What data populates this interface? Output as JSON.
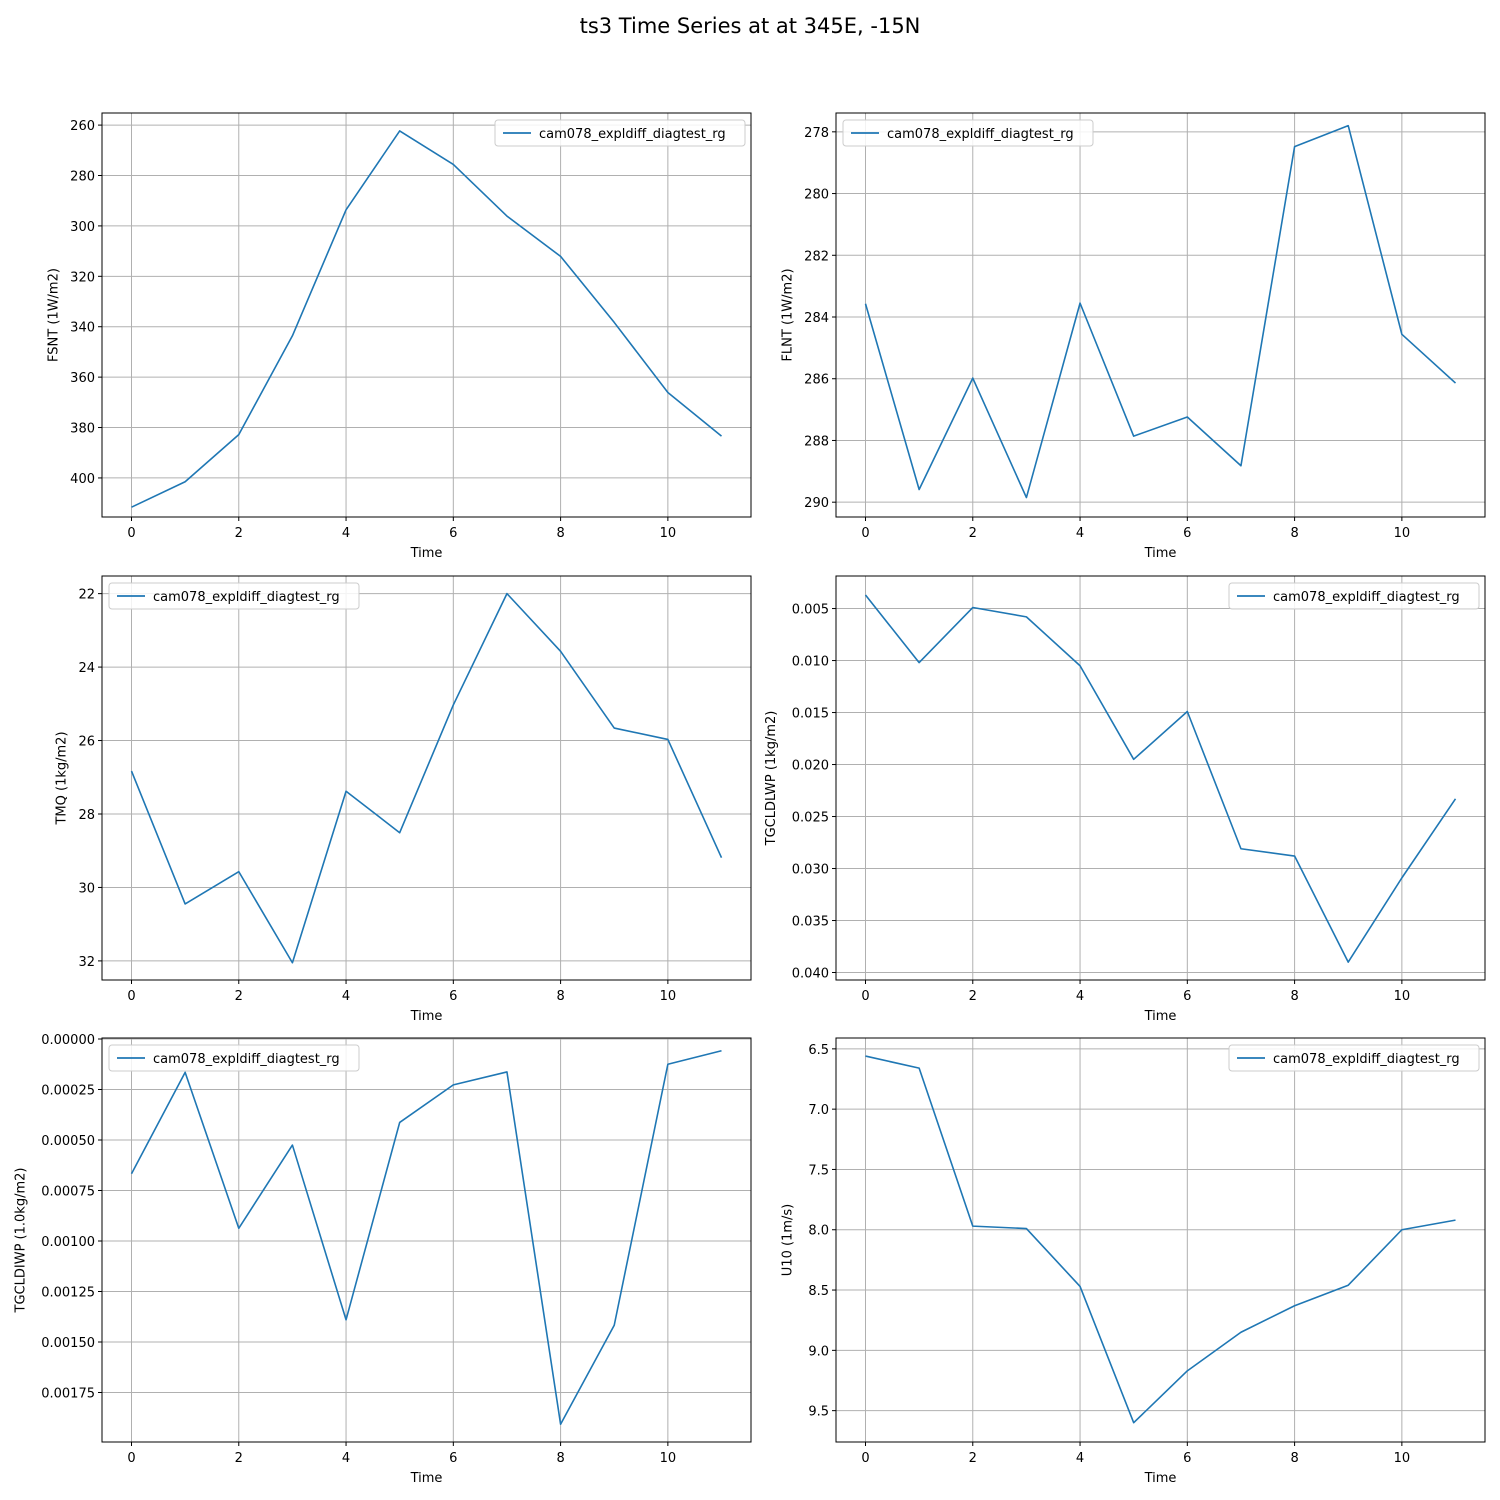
{
  "figure": {
    "title": "ts3 Time Series at at 345E, -15N"
  },
  "style": {
    "line_color": "#1f77b4",
    "grid_color": "#b0b0b0",
    "axis_color": "#000000"
  },
  "chart_data": [
    {
      "type": "line",
      "title": "",
      "xlabel": "Time",
      "ylabel": "FSNT (1W/m2)",
      "xlim": [
        -0.55,
        11.55
      ],
      "ylim": [
        415.5,
        255.2
      ],
      "y_inverted": true,
      "xticks": [
        0,
        2,
        4,
        6,
        8,
        10
      ],
      "xtick_labels": [
        "0",
        "2",
        "4",
        "6",
        "8",
        "10"
      ],
      "yticks": [
        260,
        280,
        300,
        320,
        340,
        360,
        380,
        400
      ],
      "ytick_labels": [
        "260",
        "280",
        "300",
        "320",
        "340",
        "360",
        "380",
        "400"
      ],
      "grid": true,
      "legend": "upper right",
      "x": [
        0,
        1,
        2,
        3,
        4,
        5,
        6,
        7,
        8,
        9,
        10,
        11
      ],
      "series": [
        {
          "name": "cam078_expldiff_diagtest_rg",
          "values": [
            411.6,
            401.5,
            382.8,
            343.6,
            293.6,
            262.3,
            275.6,
            296.1,
            312.1,
            338.3,
            366.1,
            383.4
          ]
        }
      ]
    },
    {
      "type": "line",
      "title": "",
      "xlabel": "Time",
      "ylabel": "FLNT (1W/m2)",
      "xlim": [
        -0.55,
        11.55
      ],
      "ylim": [
        290.48,
        277.39
      ],
      "y_inverted": true,
      "xticks": [
        0,
        2,
        4,
        6,
        8,
        10
      ],
      "xtick_labels": [
        "0",
        "2",
        "4",
        "6",
        "8",
        "10"
      ],
      "yticks": [
        278,
        280,
        282,
        284,
        286,
        288,
        290
      ],
      "ytick_labels": [
        "278",
        "280",
        "282",
        "284",
        "286",
        "288",
        "290"
      ],
      "grid": true,
      "legend": "upper left",
      "x": [
        0,
        1,
        2,
        3,
        4,
        5,
        6,
        7,
        8,
        9,
        10,
        11
      ],
      "series": [
        {
          "name": "cam078_expldiff_diagtest_rg",
          "values": [
            283.57,
            289.59,
            285.98,
            289.85,
            283.55,
            287.86,
            287.24,
            288.82,
            278.48,
            277.8,
            284.56,
            286.14
          ]
        }
      ]
    },
    {
      "type": "line",
      "title": "",
      "xlabel": "Time",
      "ylabel": "TMQ (1kg/m2)",
      "xlim": [
        -0.55,
        11.55
      ],
      "ylim": [
        32.52,
        21.52
      ],
      "y_inverted": true,
      "xticks": [
        0,
        2,
        4,
        6,
        8,
        10
      ],
      "xtick_labels": [
        "0",
        "2",
        "4",
        "6",
        "8",
        "10"
      ],
      "yticks": [
        22,
        24,
        26,
        28,
        30,
        32
      ],
      "ytick_labels": [
        "22",
        "24",
        "26",
        "28",
        "30",
        "32"
      ],
      "grid": true,
      "legend": "upper left",
      "x": [
        0,
        1,
        2,
        3,
        4,
        5,
        6,
        7,
        8,
        9,
        10,
        11
      ],
      "series": [
        {
          "name": "cam078_expldiff_diagtest_rg",
          "values": [
            26.83,
            30.45,
            29.57,
            32.05,
            27.38,
            28.51,
            25.03,
            22.0,
            23.57,
            25.66,
            25.97,
            29.19
          ]
        }
      ]
    },
    {
      "type": "line",
      "title": "",
      "xlabel": "Time",
      "ylabel": "TGCLDLWP (1kg/m2)",
      "xlim": [
        -0.55,
        11.55
      ],
      "ylim": [
        0.04072,
        0.00187
      ],
      "y_inverted": true,
      "xticks": [
        0,
        2,
        4,
        6,
        8,
        10
      ],
      "xtick_labels": [
        "0",
        "2",
        "4",
        "6",
        "8",
        "10"
      ],
      "yticks": [
        0.005,
        0.01,
        0.015,
        0.02,
        0.025,
        0.03,
        0.035,
        0.04
      ],
      "ytick_labels": [
        "0.005",
        "0.010",
        "0.015",
        "0.020",
        "0.025",
        "0.030",
        "0.035",
        "0.040"
      ],
      "grid": true,
      "legend": "upper right",
      "x": [
        0,
        1,
        2,
        3,
        4,
        5,
        6,
        7,
        8,
        9,
        10,
        11
      ],
      "series": [
        {
          "name": "cam078_expldiff_diagtest_rg",
          "values": [
            0.0037,
            0.0102,
            0.0049,
            0.0058,
            0.0105,
            0.0195,
            0.0149,
            0.0281,
            0.0288,
            0.039,
            0.0309,
            0.0233
          ]
        }
      ]
    },
    {
      "type": "line",
      "title": "",
      "xlabel": "Time",
      "ylabel": "TGCLDIWP (1.0kg/m2)",
      "xlim": [
        -0.55,
        11.55
      ],
      "ylim": [
        0.001995,
        -5e-06
      ],
      "y_inverted": true,
      "xticks": [
        0,
        2,
        4,
        6,
        8,
        10
      ],
      "xtick_labels": [
        "0",
        "2",
        "4",
        "6",
        "8",
        "10"
      ],
      "yticks": [
        0.0,
        0.00025,
        0.0005,
        0.00075,
        0.001,
        0.00125,
        0.0015,
        0.00175
      ],
      "ytick_labels": [
        "0.00000",
        "0.00025",
        "0.00050",
        "0.00075",
        "0.00100",
        "0.00125",
        "0.00150",
        "0.00175"
      ],
      "grid": true,
      "legend": "upper left",
      "x": [
        0,
        1,
        2,
        3,
        4,
        5,
        6,
        7,
        8,
        9,
        10,
        11
      ],
      "series": [
        {
          "name": "cam078_expldiff_diagtest_rg",
          "values": [
            0.000667,
            0.000165,
            0.000937,
            0.000525,
            0.00139,
            0.000413,
            0.000227,
            0.000163,
            0.001907,
            0.001417,
            0.000125,
            5.8e-05
          ]
        }
      ]
    },
    {
      "type": "line",
      "title": "",
      "xlabel": "Time",
      "ylabel": "U10 (1m/s)",
      "xlim": [
        -0.55,
        11.55
      ],
      "ylim": [
        9.76,
        6.41
      ],
      "y_inverted": true,
      "xticks": [
        0,
        2,
        4,
        6,
        8,
        10
      ],
      "xtick_labels": [
        "0",
        "2",
        "4",
        "6",
        "8",
        "10"
      ],
      "yticks": [
        6.5,
        7.0,
        7.5,
        8.0,
        8.5,
        9.0,
        9.5
      ],
      "ytick_labels": [
        "6.5",
        "7.0",
        "7.5",
        "8.0",
        "8.5",
        "9.0",
        "9.5"
      ],
      "grid": true,
      "legend": "upper right",
      "x": [
        0,
        1,
        2,
        3,
        4,
        5,
        6,
        7,
        8,
        9,
        10,
        11
      ],
      "series": [
        {
          "name": "cam078_expldiff_diagtest_rg",
          "values": [
            6.56,
            6.66,
            7.97,
            7.99,
            8.47,
            9.6,
            9.17,
            8.85,
            8.63,
            8.46,
            8.0,
            7.92
          ]
        }
      ]
    }
  ]
}
